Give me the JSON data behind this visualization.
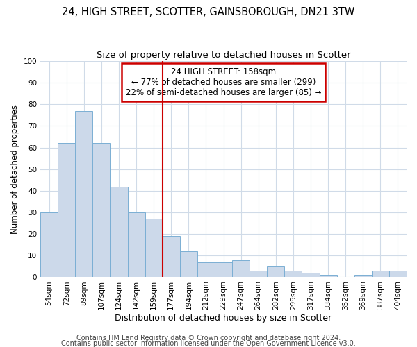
{
  "title1": "24, HIGH STREET, SCOTTER, GAINSBOROUGH, DN21 3TW",
  "title2": "Size of property relative to detached houses in Scotter",
  "xlabel": "Distribution of detached houses by size in Scotter",
  "ylabel": "Number of detached properties",
  "categories": [
    "54sqm",
    "72sqm",
    "89sqm",
    "107sqm",
    "124sqm",
    "142sqm",
    "159sqm",
    "177sqm",
    "194sqm",
    "212sqm",
    "229sqm",
    "247sqm",
    "264sqm",
    "282sqm",
    "299sqm",
    "317sqm",
    "334sqm",
    "352sqm",
    "369sqm",
    "387sqm",
    "404sqm"
  ],
  "values": [
    30,
    62,
    77,
    62,
    42,
    30,
    27,
    19,
    12,
    7,
    7,
    8,
    3,
    5,
    3,
    2,
    1,
    0,
    1,
    3,
    3
  ],
  "bar_color": "#ccd9ea",
  "bar_edge_color": "#7bafd4",
  "vline_x_index": 6.5,
  "vline_color": "#cc0000",
  "annotation_text": "24 HIGH STREET: 158sqm\n← 77% of detached houses are smaller (299)\n22% of semi-detached houses are larger (85) →",
  "annotation_box_color": "white",
  "annotation_box_edge_color": "#cc0000",
  "ylim": [
    0,
    100
  ],
  "yticks": [
    0,
    10,
    20,
    30,
    40,
    50,
    60,
    70,
    80,
    90,
    100
  ],
  "footer1": "Contains HM Land Registry data © Crown copyright and database right 2024.",
  "footer2": "Contains public sector information licensed under the Open Government Licence v3.0.",
  "bg_color": "#ffffff",
  "grid_color": "#d0dbe8",
  "title1_fontsize": 10.5,
  "title2_fontsize": 9.5,
  "xlabel_fontsize": 9,
  "ylabel_fontsize": 8.5,
  "tick_fontsize": 7.5,
  "annotation_fontsize": 8.5,
  "footer_fontsize": 7
}
